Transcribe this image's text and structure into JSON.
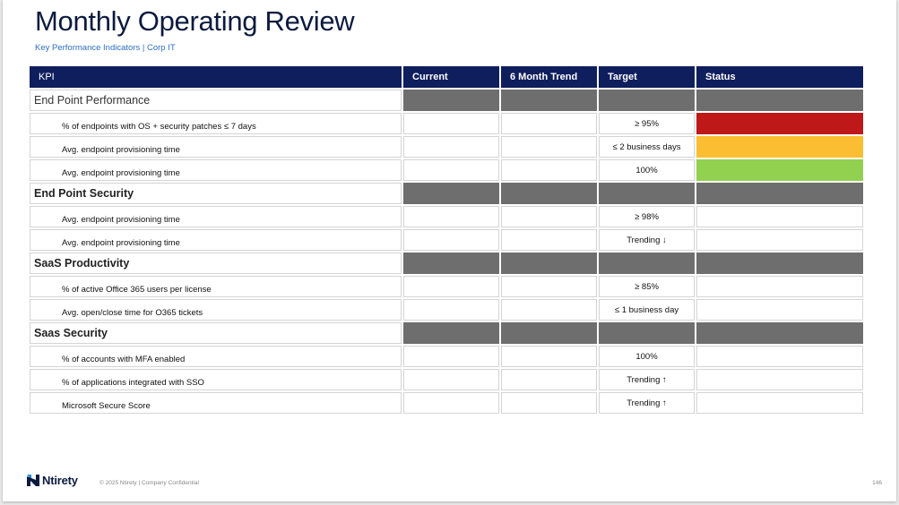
{
  "title": "Monthly Operating Review",
  "subtitle": "Key Performance Indicators | Corp IT",
  "table": {
    "headers": [
      "KPI",
      "Current",
      "6 Month Trend",
      "Target",
      "Status"
    ],
    "rows": [
      {
        "type": "section",
        "label": "End Point Performance"
      },
      {
        "type": "row",
        "label": "% of endpoints with OS + security patches ≤ 7 days",
        "target": "≥ 95%",
        "status_color": "#bf1818"
      },
      {
        "type": "row",
        "label": "Avg. endpoint provisioning time",
        "target": "≤ 2 business days",
        "status_color": "#fbbd32"
      },
      {
        "type": "row",
        "label": "Avg. endpoint provisioning time",
        "target": "100%",
        "status_color": "#92d050"
      },
      {
        "type": "section",
        "label": "End Point Security"
      },
      {
        "type": "row",
        "label": "Avg. endpoint provisioning time",
        "target": "≥ 98%",
        "status_color": ""
      },
      {
        "type": "row",
        "label": "Avg. endpoint provisioning time",
        "target": "Trending ↓",
        "status_color": ""
      },
      {
        "type": "section",
        "label": "SaaS Productivity"
      },
      {
        "type": "row",
        "label": "% of active Office 365 users per license",
        "target": "≥ 85%",
        "status_color": ""
      },
      {
        "type": "row",
        "label": "Avg. open/close time for O365 tickets",
        "target": "≤ 1 business day",
        "status_color": ""
      },
      {
        "type": "section",
        "label": "Saas Security"
      },
      {
        "type": "row",
        "label": "% of accounts with MFA enabled",
        "target": "100%",
        "status_color": ""
      },
      {
        "type": "row",
        "label": "% of applications integrated with SSO",
        "target": "Trending ↑",
        "status_color": ""
      },
      {
        "type": "row",
        "label": "Microsoft Secure Score",
        "target": "Trending ↑",
        "status_color": ""
      }
    ]
  },
  "footer": {
    "brand": "Ntirety",
    "logo_icon": "ntirety-logo-icon",
    "copyright": "© 2025 Ntirety | Company Confidential",
    "page_number": "146"
  },
  "colors": {
    "header_bg": "#0f1e5c",
    "section_fill": "#6e6e6e",
    "title": "#0b1a3f",
    "subtitle": "#2d6fc4"
  }
}
